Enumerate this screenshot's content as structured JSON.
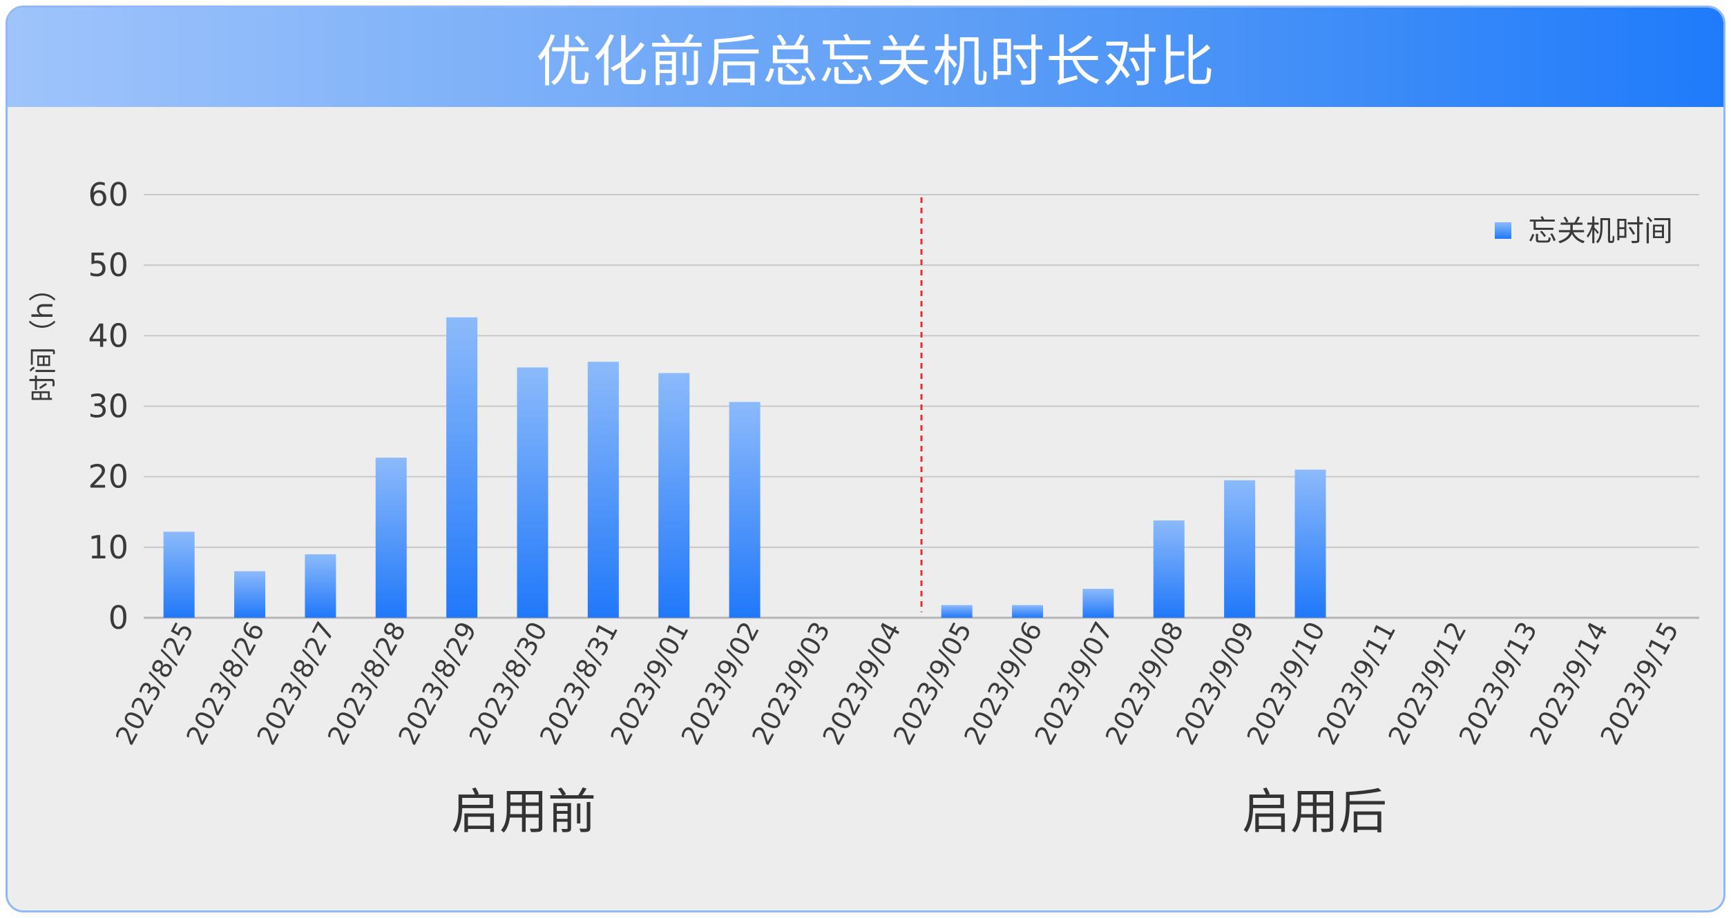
{
  "chart_data": {
    "type": "bar",
    "title": "优化前后总忘关机时长对比",
    "ylabel": "时间（h）",
    "ylim": [
      0,
      60
    ],
    "yticks": [
      0,
      10,
      20,
      30,
      40,
      50,
      60
    ],
    "grid": true,
    "legend": "top-right",
    "categories": [
      "2023/8/25",
      "2023/8/26",
      "2023/8/27",
      "2023/8/28",
      "2023/8/29",
      "2023/8/30",
      "2023/8/31",
      "2023/9/01",
      "2023/9/02",
      "2023/9/03",
      "2023/9/04",
      "2023/9/05",
      "2023/9/06",
      "2023/9/07",
      "2023/9/08",
      "2023/9/09",
      "2023/9/10",
      "2023/9/11",
      "2023/9/12",
      "2023/9/13",
      "2023/9/14",
      "2023/9/15"
    ],
    "series": [
      {
        "name": "忘关机时间",
        "values": [
          12.2,
          6.6,
          9.0,
          22.7,
          42.6,
          35.5,
          36.3,
          34.7,
          30.6,
          0,
          0,
          1.8,
          1.8,
          4.1,
          13.8,
          19.5,
          21.0,
          0,
          0,
          0,
          0,
          0
        ]
      }
    ],
    "divider_after": "2023/9/04",
    "group_labels": [
      "启用前",
      "启用后"
    ],
    "colors": {
      "bar_top": "#8cbafb",
      "bar_bottom": "#2078fa",
      "divider": "#e03030",
      "grid": "#c8c8c8",
      "axis_text": "#3a3a3a"
    }
  }
}
